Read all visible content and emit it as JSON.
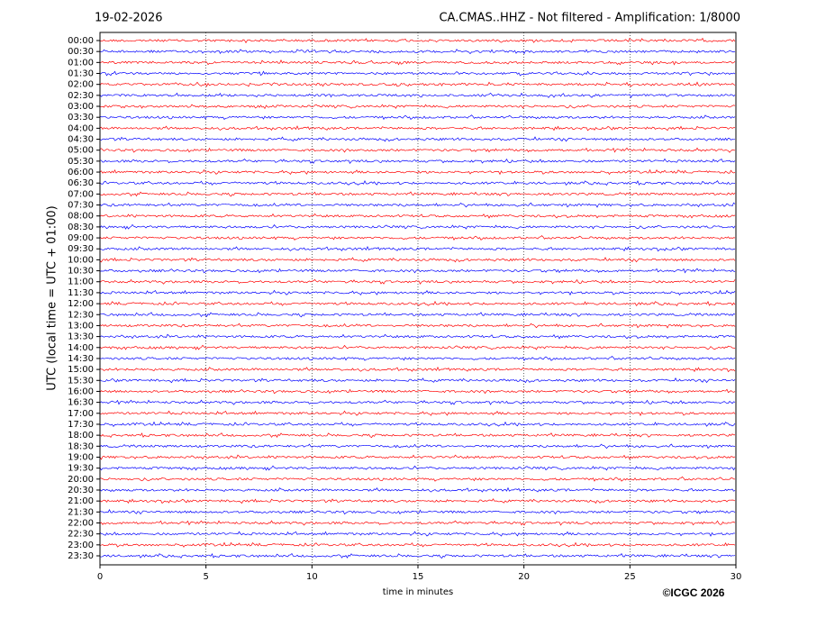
{
  "chart_data": {
    "type": "helicorder",
    "title": "19-02-2026",
    "subtitle": "CA.CMAS..HHZ - Not filtered - Amplification: 1/8000",
    "ylabel": "UTC (local time = UTC + 01:00)",
    "xlabel": "time in minutes",
    "credit": "©ICGC 2026",
    "categories": [
      "00:00",
      "00:30",
      "01:00",
      "01:30",
      "02:00",
      "02:30",
      "03:00",
      "03:30",
      "04:00",
      "04:30",
      "05:00",
      "05:30",
      "06:00",
      "06:30",
      "07:00",
      "07:30",
      "08:00",
      "08:30",
      "09:00",
      "09:30",
      "10:00",
      "10:30",
      "11:00",
      "11:30",
      "12:00",
      "12:30",
      "13:00",
      "13:30",
      "14:00",
      "14:30",
      "15:00",
      "15:30",
      "16:00",
      "16:30",
      "17:00",
      "17:30",
      "18:00",
      "18:30",
      "19:00",
      "19:30",
      "20:00",
      "20:30",
      "21:00",
      "21:30",
      "22:00",
      "22:30",
      "23:00",
      "23:30"
    ],
    "colors": [
      "#ff0000",
      "#0000ff"
    ],
    "xlim": [
      0,
      30
    ],
    "xticks": [
      0,
      5,
      10,
      15,
      20,
      25,
      30
    ],
    "grid": true
  }
}
